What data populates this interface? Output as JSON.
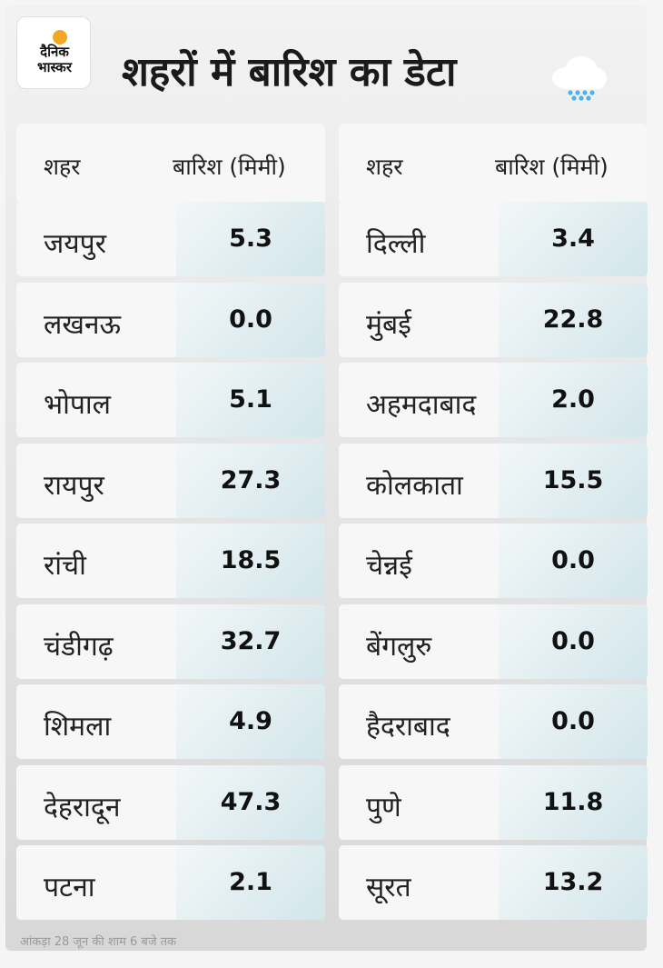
{
  "brand": {
    "line1": "दैनिक",
    "line2": "भास्कर"
  },
  "title": "शहरों में बारिश का डेटा",
  "columns": {
    "city": "शहर",
    "rain": "बारिश (मिमी)"
  },
  "left_rows": [
    {
      "city": "जयपुर",
      "value": "5.3"
    },
    {
      "city": "लखनऊ",
      "value": "0.0"
    },
    {
      "city": "भोपाल",
      "value": "5.1"
    },
    {
      "city": "रायपुर",
      "value": "27.3"
    },
    {
      "city": "रांची",
      "value": "18.5"
    },
    {
      "city": "चंडीगढ़",
      "value": "32.7"
    },
    {
      "city": "शिमला",
      "value": "4.9"
    },
    {
      "city": "देहरादून",
      "value": "47.3"
    },
    {
      "city": "पटना",
      "value": "2.1"
    }
  ],
  "right_rows": [
    {
      "city": "दिल्ली",
      "value": "3.4"
    },
    {
      "city": "मुंबई",
      "value": "22.8"
    },
    {
      "city": "अहमदाबाद",
      "value": "2.0"
    },
    {
      "city": "कोलकाता",
      "value": "15.5"
    },
    {
      "city": "चेन्नई",
      "value": "0.0"
    },
    {
      "city": "बेंगलुरु",
      "value": "0.0"
    },
    {
      "city": "हैदराबाद",
      "value": "0.0"
    },
    {
      "city": "पुणे",
      "value": "11.8"
    },
    {
      "city": "सूरत",
      "value": "13.2"
    }
  ],
  "footnote": "आंकड़ा 28 जून की शाम 6 बजे तक",
  "icons": {
    "logo": "dainik-bhaskar-logo",
    "title_icon": "rain-cloud-icon"
  },
  "colors": {
    "accent_sun": "#f5a623",
    "rain_drops": "#4ab3e8",
    "value_cell": "#dceaee"
  }
}
